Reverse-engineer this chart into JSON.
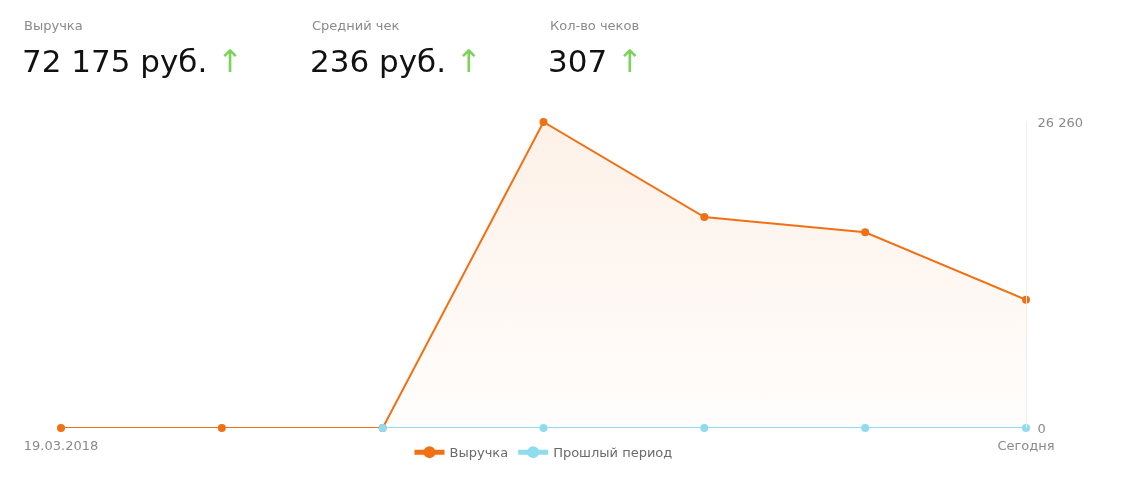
{
  "chart_data": [
    {
      "type": "other",
      "annotations": [
        "Выручка",
        "72 175 руб.",
        "↑",
        "Средний чек",
        "236 руб.",
        "↑",
        "Кол-во чеков",
        "307",
        "↑"
      ]
    },
    {
      "type": "area",
      "categories": [
        "19.03.2018",
        null,
        null,
        null,
        null,
        null,
        "Сегодня"
      ],
      "series": [
        {
          "name": "Выручка",
          "type": "area",
          "color": "#f07014",
          "values": [
            0,
            0,
            0,
            26260,
            18100,
            16800,
            11000
          ]
        },
        {
          "name": "Прошлый период",
          "type": "line",
          "color": "#8fdcf0",
          "values": [
            null,
            null,
            0,
            0,
            0,
            0,
            0
          ]
        }
      ],
      "ylim": [
        0,
        26260
      ],
      "yticks": [
        {
          "value": 0,
          "label": "0"
        },
        {
          "value": 26260,
          "label": "26 260"
        }
      ],
      "legend": "bottom",
      "marker": "circle"
    }
  ]
}
